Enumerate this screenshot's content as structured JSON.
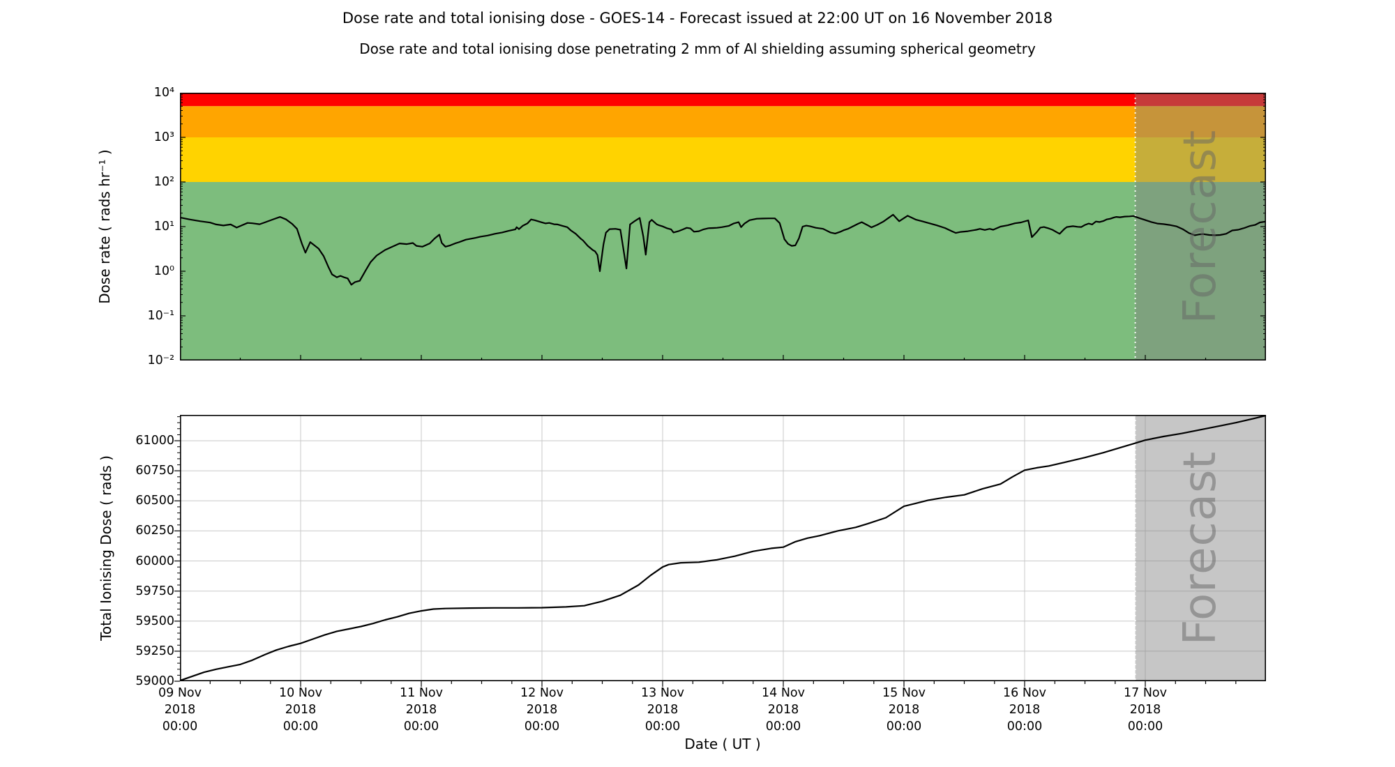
{
  "page": {
    "title": "Dose rate and total ionising dose - GOES-14 - Forecast issued at 22:00 UT on 16 November 2018",
    "subtitle": "Dose rate and total ionising dose penetrating 2 mm of Al shielding assuming spherical geometry"
  },
  "x_axis": {
    "label": "Date ( UT )",
    "span_days": 9,
    "ticks": [
      {
        "date": "09 Nov",
        "year": "2018",
        "time": "00:00"
      },
      {
        "date": "10 Nov",
        "year": "2018",
        "time": "00:00"
      },
      {
        "date": "11 Nov",
        "year": "2018",
        "time": "00:00"
      },
      {
        "date": "12 Nov",
        "year": "2018",
        "time": "00:00"
      },
      {
        "date": "13 Nov",
        "year": "2018",
        "time": "00:00"
      },
      {
        "date": "14 Nov",
        "year": "2018",
        "time": "00:00"
      },
      {
        "date": "15 Nov",
        "year": "2018",
        "time": "00:00"
      },
      {
        "date": "16 Nov",
        "year": "2018",
        "time": "00:00"
      },
      {
        "date": "17 Nov",
        "year": "2018",
        "time": "00:00"
      }
    ]
  },
  "forecast": {
    "label": "Forecast",
    "start_day": 7.9167,
    "issued": "22:00 UT on 16 November 2018"
  },
  "colors": {
    "red_band": "#ff0000",
    "orange_band": "#ffa500",
    "yellow_band": "#ffd300",
    "green_band": "#7dbd7d",
    "forecast_overlay": "rgba(128,128,128,0.45)",
    "forecast_edge": "rgba(255,255,255,0.95)",
    "grid": "#c8c8c8",
    "line": "#000000"
  },
  "chart_data": [
    {
      "type": "line",
      "name": "dose_rate",
      "ylabel": "Dose rate ( rads hr⁻¹ )",
      "yscale": "log",
      "ylim": [
        0.01,
        10000
      ],
      "ytick_labels": [
        "10⁴",
        "10³",
        "10²",
        "10¹",
        "10⁰",
        "10⁻¹",
        "10⁻²"
      ],
      "bands": [
        {
          "name": "red",
          "from": 5000,
          "to": 10000
        },
        {
          "name": "orange",
          "from": 1000,
          "to": 5000
        },
        {
          "name": "yellow",
          "from": 100,
          "to": 1000
        },
        {
          "name": "green",
          "from": 0.01,
          "to": 100
        }
      ],
      "points": [
        [
          0,
          16
        ],
        [
          0.08,
          14.5
        ],
        [
          0.17,
          13.2
        ],
        [
          0.25,
          12.3
        ],
        [
          0.3,
          11.2
        ],
        [
          0.36,
          10.6
        ],
        [
          0.42,
          11.2
        ],
        [
          0.47,
          9.5
        ],
        [
          0.52,
          10.9
        ],
        [
          0.56,
          12.1
        ],
        [
          0.6,
          11.9
        ],
        [
          0.66,
          11.3
        ],
        [
          0.72,
          12.9
        ],
        [
          0.78,
          14.8
        ],
        [
          0.83,
          16.5
        ],
        [
          0.88,
          14.5
        ],
        [
          0.93,
          11.5
        ],
        [
          0.97,
          8.9
        ],
        [
          1.01,
          4.2
        ],
        [
          1.04,
          2.6
        ],
        [
          1.08,
          4.5
        ],
        [
          1.11,
          3.9
        ],
        [
          1.15,
          3.2
        ],
        [
          1.19,
          2.2
        ],
        [
          1.23,
          1.25
        ],
        [
          1.26,
          0.85
        ],
        [
          1.3,
          0.73
        ],
        [
          1.33,
          0.79
        ],
        [
          1.36,
          0.73
        ],
        [
          1.39,
          0.69
        ],
        [
          1.42,
          0.5
        ],
        [
          1.45,
          0.57
        ],
        [
          1.49,
          0.61
        ],
        [
          1.54,
          1.05
        ],
        [
          1.58,
          1.6
        ],
        [
          1.63,
          2.25
        ],
        [
          1.7,
          3
        ],
        [
          1.78,
          3.75
        ],
        [
          1.82,
          4.2
        ],
        [
          1.88,
          4.05
        ],
        [
          1.93,
          4.3
        ],
        [
          1.96,
          3.7
        ],
        [
          2.01,
          3.55
        ],
        [
          2.07,
          4.2
        ],
        [
          2.11,
          5.4
        ],
        [
          2.15,
          6.6
        ],
        [
          2.17,
          4.3
        ],
        [
          2.2,
          3.55
        ],
        [
          2.24,
          3.8
        ],
        [
          2.28,
          4.2
        ],
        [
          2.31,
          4.45
        ],
        [
          2.37,
          5.1
        ],
        [
          2.42,
          5.4
        ],
        [
          2.45,
          5.6
        ],
        [
          2.49,
          5.95
        ],
        [
          2.55,
          6.3
        ],
        [
          2.61,
          6.9
        ],
        [
          2.67,
          7.4
        ],
        [
          2.72,
          8
        ],
        [
          2.78,
          8.7
        ],
        [
          2.79,
          9.7
        ],
        [
          2.81,
          8.8
        ],
        [
          2.84,
          10.4
        ],
        [
          2.88,
          11.8
        ],
        [
          2.91,
          14.5
        ],
        [
          2.94,
          13.9
        ],
        [
          2.98,
          12.9
        ],
        [
          3.03,
          11.8
        ],
        [
          3.06,
          12.1
        ],
        [
          3.1,
          11.3
        ],
        [
          3.13,
          11.2
        ],
        [
          3.17,
          10.4
        ],
        [
          3.21,
          9.7
        ],
        [
          3.24,
          8.2
        ],
        [
          3.28,
          6.9
        ],
        [
          3.32,
          5.4
        ],
        [
          3.34,
          4.9
        ],
        [
          3.38,
          3.7
        ],
        [
          3.42,
          3
        ],
        [
          3.44,
          2.8
        ],
        [
          3.46,
          2.3
        ],
        [
          3.48,
          1
        ],
        [
          3.51,
          4
        ],
        [
          3.53,
          7.3
        ],
        [
          3.56,
          8.8
        ],
        [
          3.61,
          8.9
        ],
        [
          3.65,
          8.5
        ],
        [
          3.68,
          2.6
        ],
        [
          3.7,
          1.15
        ],
        [
          3.73,
          11.2
        ],
        [
          3.77,
          13.4
        ],
        [
          3.81,
          15.7
        ],
        [
          3.84,
          6
        ],
        [
          3.86,
          2.35
        ],
        [
          3.89,
          12.6
        ],
        [
          3.91,
          14.2
        ],
        [
          3.95,
          11.3
        ],
        [
          3.97,
          10.7
        ],
        [
          4,
          10.1
        ],
        [
          4.04,
          9.1
        ],
        [
          4.07,
          8.7
        ],
        [
          4.09,
          7.4
        ],
        [
          4.13,
          7.9
        ],
        [
          4.17,
          8.7
        ],
        [
          4.2,
          9.4
        ],
        [
          4.23,
          9.1
        ],
        [
          4.26,
          7.7
        ],
        [
          4.3,
          7.9
        ],
        [
          4.34,
          8.7
        ],
        [
          4.38,
          9.2
        ],
        [
          4.42,
          9.3
        ],
        [
          4.45,
          9.4
        ],
        [
          4.49,
          9.7
        ],
        [
          4.55,
          10.4
        ],
        [
          4.59,
          11.8
        ],
        [
          4.63,
          12.6
        ],
        [
          4.65,
          9.7
        ],
        [
          4.68,
          11.8
        ],
        [
          4.72,
          13.9
        ],
        [
          4.78,
          15
        ],
        [
          4.83,
          15.2
        ],
        [
          4.88,
          15.3
        ],
        [
          4.93,
          15.3
        ],
        [
          4.97,
          12
        ],
        [
          5.01,
          5.2
        ],
        [
          5.04,
          4.1
        ],
        [
          5.07,
          3.7
        ],
        [
          5.1,
          3.8
        ],
        [
          5.13,
          5.5
        ],
        [
          5.16,
          10
        ],
        [
          5.19,
          10.5
        ],
        [
          5.22,
          10.2
        ],
        [
          5.27,
          9.4
        ],
        [
          5.33,
          8.9
        ],
        [
          5.39,
          7.4
        ],
        [
          5.43,
          7
        ],
        [
          5.47,
          7.6
        ],
        [
          5.5,
          8.3
        ],
        [
          5.54,
          9
        ],
        [
          5.58,
          10.2
        ],
        [
          5.62,
          11.6
        ],
        [
          5.65,
          12.6
        ],
        [
          5.7,
          10.7
        ],
        [
          5.73,
          9.6
        ],
        [
          5.78,
          11
        ],
        [
          5.83,
          13
        ],
        [
          5.87,
          15.5
        ],
        [
          5.91,
          18.5
        ],
        [
          5.96,
          13.2
        ],
        [
          6.03,
          17.5
        ],
        [
          6.1,
          14.3
        ],
        [
          6.15,
          13.2
        ],
        [
          6.21,
          11.9
        ],
        [
          6.27,
          10.7
        ],
        [
          6.34,
          9.3
        ],
        [
          6.4,
          7.8
        ],
        [
          6.43,
          7.2
        ],
        [
          6.47,
          7.6
        ],
        [
          6.53,
          7.9
        ],
        [
          6.6,
          8.5
        ],
        [
          6.63,
          8.9
        ],
        [
          6.67,
          8.4
        ],
        [
          6.71,
          8.9
        ],
        [
          6.74,
          8.5
        ],
        [
          6.8,
          10
        ],
        [
          6.86,
          10.7
        ],
        [
          6.92,
          11.9
        ],
        [
          6.97,
          12.4
        ],
        [
          7.03,
          13.8
        ],
        [
          7.06,
          5.8
        ],
        [
          7.1,
          7.5
        ],
        [
          7.13,
          9.5
        ],
        [
          7.16,
          9.8
        ],
        [
          7.2,
          9.1
        ],
        [
          7.23,
          8.5
        ],
        [
          7.27,
          7.4
        ],
        [
          7.29,
          6.9
        ],
        [
          7.33,
          8.9
        ],
        [
          7.35,
          9.8
        ],
        [
          7.4,
          10.2
        ],
        [
          7.44,
          9.9
        ],
        [
          7.47,
          9.8
        ],
        [
          7.5,
          10.9
        ],
        [
          7.53,
          11.7
        ],
        [
          7.56,
          11.2
        ],
        [
          7.59,
          13
        ],
        [
          7.62,
          12.7
        ],
        [
          7.65,
          13.3
        ],
        [
          7.68,
          14.5
        ],
        [
          7.71,
          15
        ],
        [
          7.74,
          16
        ],
        [
          7.76,
          16.5
        ],
        [
          7.79,
          16.2
        ],
        [
          7.83,
          16.8
        ],
        [
          7.87,
          17
        ],
        [
          7.9,
          17.3
        ],
        [
          7.95,
          15.5
        ],
        [
          8,
          14
        ],
        [
          8.05,
          12.7
        ],
        [
          8.1,
          11.7
        ],
        [
          8.15,
          11.4
        ],
        [
          8.2,
          10.9
        ],
        [
          8.26,
          10.1
        ],
        [
          8.31,
          8.8
        ],
        [
          8.36,
          7.2
        ],
        [
          8.41,
          6.4
        ],
        [
          8.45,
          6.7
        ],
        [
          8.48,
          6.8
        ],
        [
          8.53,
          6.5
        ],
        [
          8.58,
          6.4
        ],
        [
          8.62,
          6.5
        ],
        [
          8.67,
          6.9
        ],
        [
          8.72,
          8.2
        ],
        [
          8.77,
          8.5
        ],
        [
          8.82,
          9.3
        ],
        [
          8.87,
          10.4
        ],
        [
          8.91,
          10.9
        ],
        [
          8.95,
          12.4
        ],
        [
          9,
          13
        ]
      ]
    },
    {
      "type": "line",
      "name": "total_ionising_dose",
      "ylabel": "Total Ionising Dose ( rads )",
      "yscale": "linear",
      "ylim": [
        59000,
        61215
      ],
      "yticks": [
        59000,
        59250,
        59500,
        59750,
        60000,
        60250,
        60500,
        60750,
        61000
      ],
      "grid": true,
      "points": [
        [
          0,
          59005
        ],
        [
          0.1,
          59040
        ],
        [
          0.2,
          59075
        ],
        [
          0.3,
          59100
        ],
        [
          0.4,
          59120
        ],
        [
          0.5,
          59140
        ],
        [
          0.6,
          59175
        ],
        [
          0.7,
          59220
        ],
        [
          0.8,
          59260
        ],
        [
          0.9,
          59290
        ],
        [
          1,
          59315
        ],
        [
          1.1,
          59350
        ],
        [
          1.2,
          59385
        ],
        [
          1.3,
          59415
        ],
        [
          1.4,
          59435
        ],
        [
          1.5,
          59455
        ],
        [
          1.6,
          59480
        ],
        [
          1.7,
          59510
        ],
        [
          1.8,
          59535
        ],
        [
          1.9,
          59565
        ],
        [
          2,
          59585
        ],
        [
          2.1,
          59600
        ],
        [
          2.2,
          59605
        ],
        [
          2.4,
          59608
        ],
        [
          2.6,
          59610
        ],
        [
          2.8,
          59610
        ],
        [
          3,
          59612
        ],
        [
          3.2,
          59618
        ],
        [
          3.35,
          59628
        ],
        [
          3.5,
          59665
        ],
        [
          3.65,
          59715
        ],
        [
          3.8,
          59800
        ],
        [
          3.9,
          59880
        ],
        [
          4,
          59950
        ],
        [
          4.05,
          59970
        ],
        [
          4.15,
          59985
        ],
        [
          4.3,
          59990
        ],
        [
          4.45,
          60010
        ],
        [
          4.6,
          60040
        ],
        [
          4.75,
          60080
        ],
        [
          4.9,
          60105
        ],
        [
          5,
          60115
        ],
        [
          5.1,
          60160
        ],
        [
          5.2,
          60190
        ],
        [
          5.3,
          60210
        ],
        [
          5.45,
          60250
        ],
        [
          5.6,
          60280
        ],
        [
          5.7,
          60310
        ],
        [
          5.85,
          60360
        ],
        [
          6,
          60455
        ],
        [
          6.1,
          60480
        ],
        [
          6.2,
          60505
        ],
        [
          6.35,
          60530
        ],
        [
          6.5,
          60550
        ],
        [
          6.65,
          60600
        ],
        [
          6.8,
          60640
        ],
        [
          6.9,
          60700
        ],
        [
          7,
          60755
        ],
        [
          7.1,
          60775
        ],
        [
          7.2,
          60790
        ],
        [
          7.35,
          60825
        ],
        [
          7.5,
          60860
        ],
        [
          7.65,
          60900
        ],
        [
          7.8,
          60945
        ],
        [
          7.9,
          60975
        ],
        [
          8,
          61005
        ],
        [
          8.15,
          61035
        ],
        [
          8.3,
          61060
        ],
        [
          8.45,
          61090
        ],
        [
          8.6,
          61120
        ],
        [
          8.75,
          61150
        ],
        [
          8.9,
          61185
        ],
        [
          9,
          61210
        ]
      ]
    }
  ]
}
